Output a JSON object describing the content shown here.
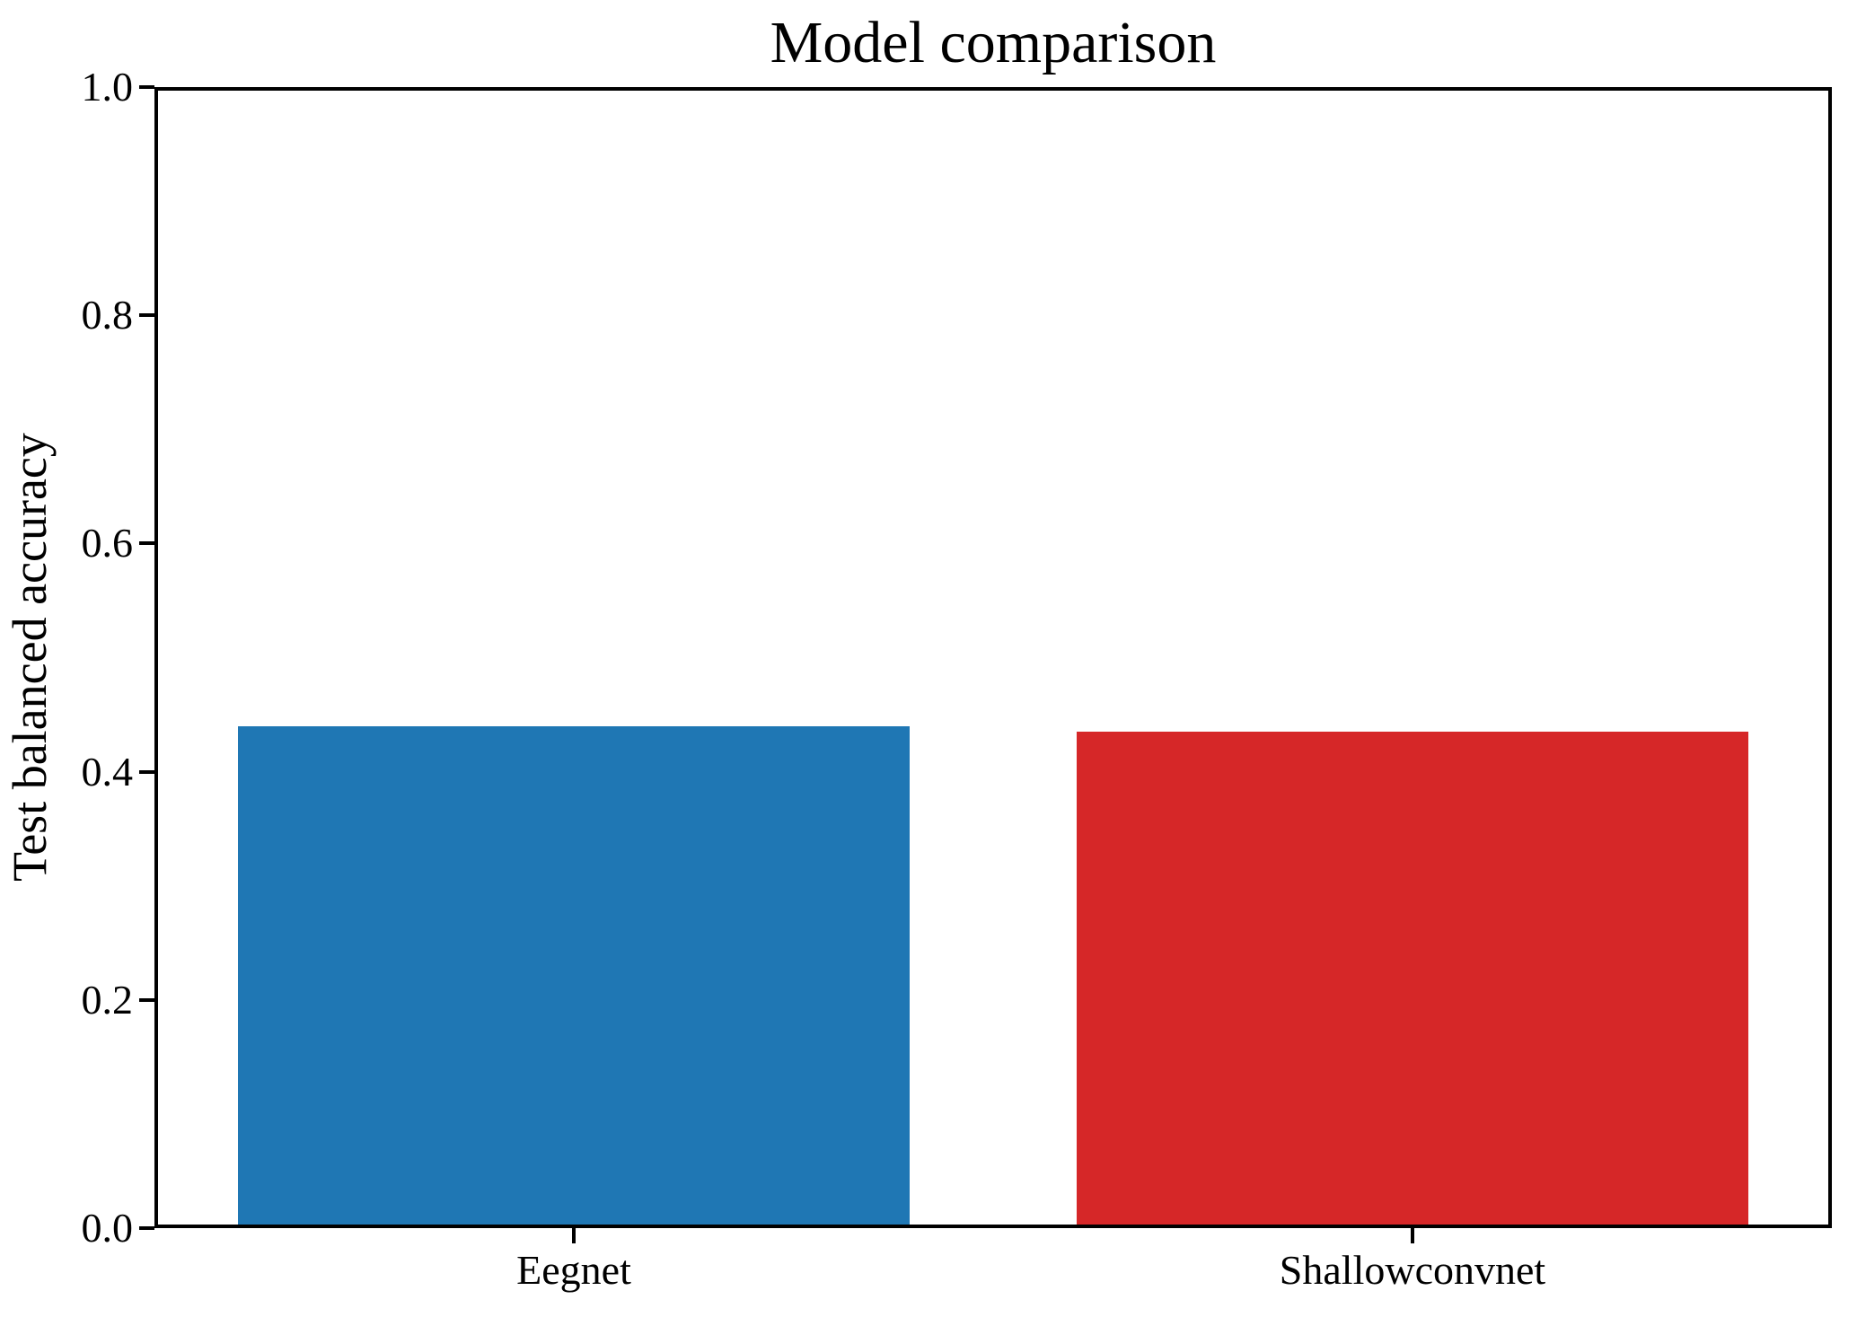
{
  "chart_data": {
    "type": "bar",
    "title": "Model comparison",
    "xlabel": "",
    "ylabel": "Test balanced accuracy",
    "categories": [
      "Eegnet",
      "Shallowconvnet"
    ],
    "values": [
      0.44,
      0.435
    ],
    "bar_colors": [
      "#1f77b4",
      "#d62728"
    ],
    "ylim": [
      0.0,
      1.0
    ],
    "ytick_values": [
      0.0,
      0.2,
      0.4,
      0.6,
      0.8,
      1.0
    ],
    "ytick_labels": [
      "0.0",
      "0.2",
      "0.4",
      "0.6",
      "0.8",
      "1.0"
    ],
    "grid": false,
    "legend_position": "none",
    "axis_color": "#000000",
    "background_color": "#ffffff"
  }
}
